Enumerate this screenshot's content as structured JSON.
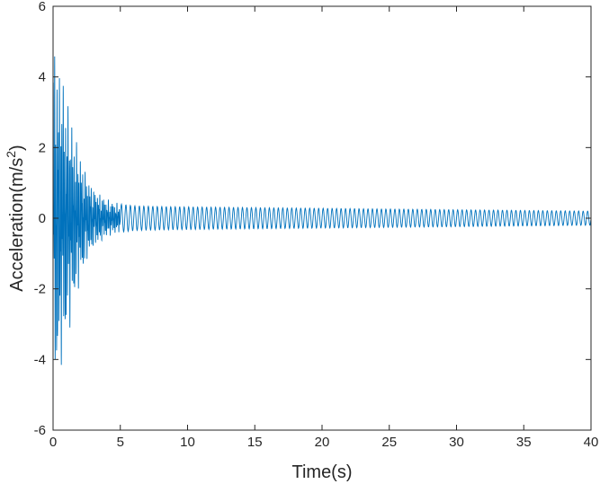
{
  "chart_data": {
    "type": "line",
    "title": "",
    "xlabel": "Time(s)",
    "ylabel_base": "Acceleration(m/s",
    "ylabel_sup": "2",
    "ylabel_close": ")",
    "xlim": [
      0,
      40
    ],
    "ylim": [
      -6,
      6
    ],
    "xticks": [
      0,
      5,
      10,
      15,
      20,
      25,
      30,
      35,
      40
    ],
    "yticks": [
      -6,
      -4,
      -2,
      0,
      2,
      4,
      6
    ],
    "xtick_labels": [
      "0",
      "5",
      "10",
      "15",
      "20",
      "25",
      "30",
      "35",
      "40"
    ],
    "ytick_labels": [
      "-6",
      "-4",
      "-2",
      "0",
      "2",
      "4",
      "6"
    ],
    "grid": false,
    "line_color": "#0072BD",
    "axis_color": "#262626",
    "series": [
      {
        "description": "damped vibration response",
        "sample_times": [
          0,
          0.3,
          0.6,
          1.0,
          1.5,
          2.0,
          2.5,
          3.0,
          4.0,
          5.0,
          6.0,
          8.0,
          10.0,
          15.0,
          20.0,
          25.0,
          30.0,
          35.0,
          40.0
        ],
        "envelope_amplitude": [
          5.3,
          4.9,
          4.3,
          3.6,
          2.6,
          1.9,
          1.3,
          0.9,
          0.55,
          0.4,
          0.35,
          0.33,
          0.32,
          0.3,
          0.28,
          0.26,
          0.24,
          0.22,
          0.2
        ],
        "dominant_frequency_hz": 3.0
      }
    ]
  }
}
